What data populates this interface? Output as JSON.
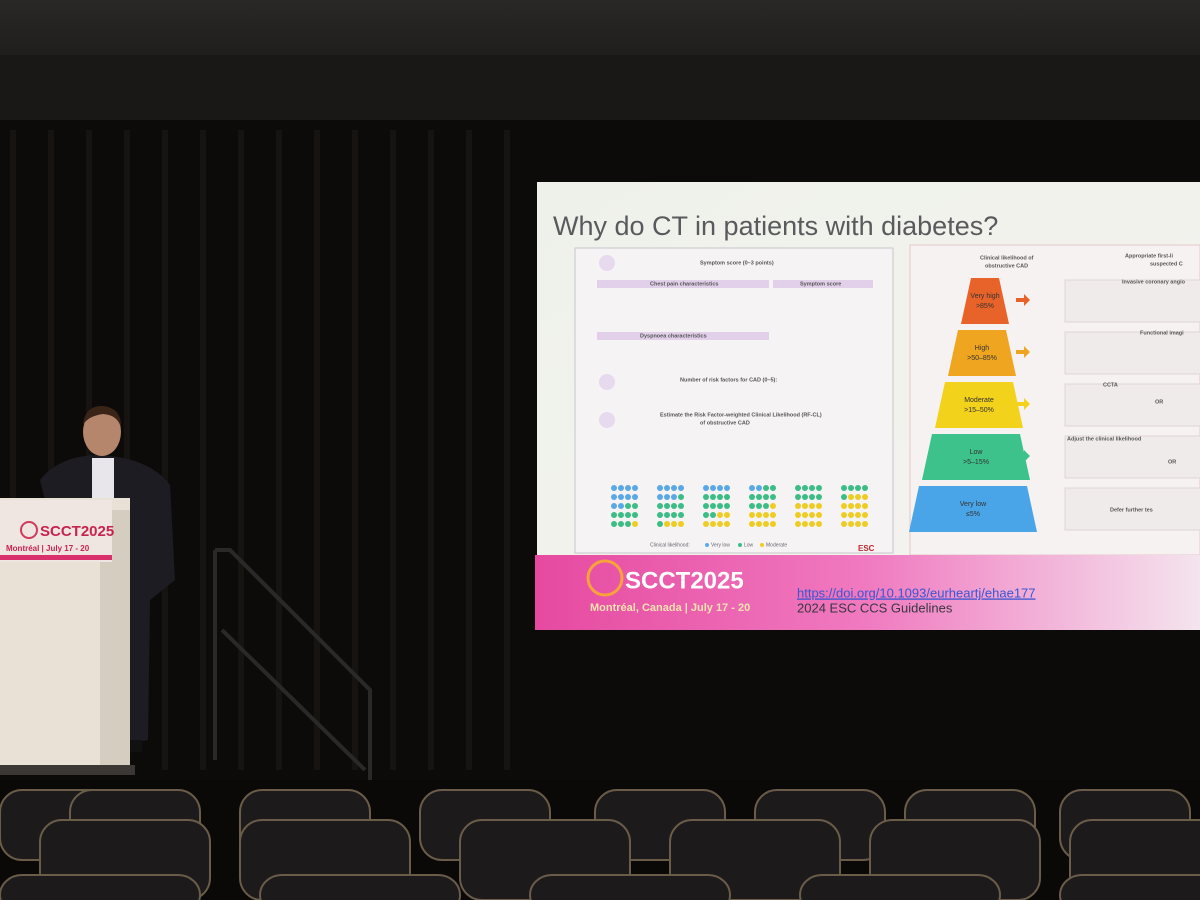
{
  "slide": {
    "title": "Why do CT in patients with diabetes?",
    "left_panel": {
      "step1": "Symptom score (0–3 points)",
      "chest_pain": "Chest pain characteristics",
      "symptom_score": "Symptom score",
      "dyspnoea": "Dyspnoea characteristics",
      "step2": "Number of risk factors for CAD (0–5):",
      "step3": "Estimate the Risk Factor-weighted Clinical Likelihood (RF-CL)",
      "step3b": "of obstructive CAD",
      "legend_title": "Clinical likelihood:",
      "legend": [
        "Very low",
        "Low",
        "Moderate"
      ],
      "logo": "ESC"
    },
    "right_panel": {
      "heading": [
        "Clinical likelihood of",
        "obstructive CAD"
      ],
      "tests_heading": [
        "Appropriate first-li",
        "suspected C"
      ],
      "levels": [
        {
          "label": "Very high",
          "range": ">85%"
        },
        {
          "label": "High",
          "range": ">50–85%"
        },
        {
          "label": "Moderate",
          "range": ">15–50%"
        },
        {
          "label": "Low",
          "range": ">5–15%"
        },
        {
          "label": "Very low",
          "range": "≤5%"
        }
      ],
      "tests": [
        "Invasive coronary angio",
        "Functional imagi",
        "CCTA",
        "OR",
        "Adjust the clinical likelihood",
        "OR",
        "Defer further tes"
      ]
    },
    "footer": {
      "brand": "SCCT2025",
      "place": "Montréal, Canada | July 17 - 20",
      "link": "https://doi.org/10.1093/eurheartj/ehae177",
      "source": "2024 ESC CCS Guidelines"
    }
  },
  "podium": {
    "brand": "SCCT2025",
    "place": "Montréal | July 17 - 20"
  }
}
